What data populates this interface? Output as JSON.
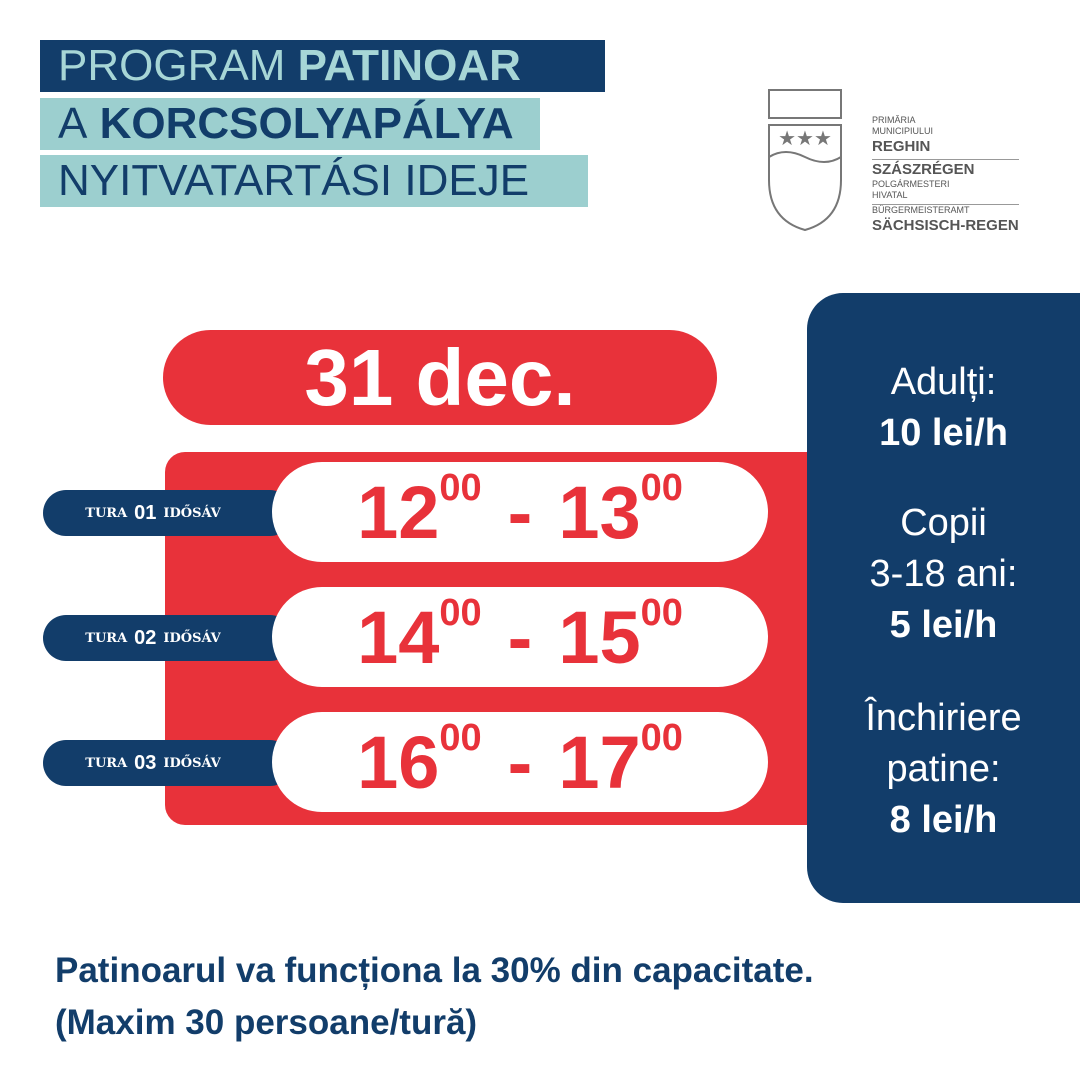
{
  "header": {
    "lines": [
      {
        "normal": "PROGRAM",
        "bold": "PATINOAR"
      },
      {
        "normal": "A",
        "bold": "KORCSOLYAPÁLYA"
      },
      {
        "normal": "NYITVATARTÁSI IDEJE"
      }
    ]
  },
  "logo": {
    "lines": [
      "PRIMĂRIA",
      "MUNICIPIULUI",
      "REGHIN",
      "SZÁSZRÉGEN",
      "POLGÁRMESTERI",
      "HIVATAL",
      "BÜRGERMEISTERAMT",
      "SÄCHSISCH-REGEN"
    ]
  },
  "date": "31 dec.",
  "slots": [
    {
      "label": "TURA",
      "number": "01",
      "suffix": "IDŐSÁV",
      "start_hour": "12",
      "start_min": "00",
      "separator": "-",
      "end_hour": "13",
      "end_min": "00"
    },
    {
      "label": "TURA",
      "number": "02",
      "suffix": "IDŐSÁV",
      "start_hour": "14",
      "start_min": "00",
      "separator": "-",
      "end_hour": "15",
      "end_min": "00"
    },
    {
      "label": "TURA",
      "number": "03",
      "suffix": "IDŐSÁV",
      "start_hour": "16",
      "start_min": "00",
      "separator": "-",
      "end_hour": "17",
      "end_min": "00"
    }
  ],
  "prices": [
    {
      "lines": [
        "Adulți:"
      ],
      "price": "10 lei/h"
    },
    {
      "lines": [
        "Copii",
        "3-18 ani:"
      ],
      "price": "5 lei/h"
    },
    {
      "lines": [
        "Închiriere",
        "patine:"
      ],
      "price": "8 lei/h"
    }
  ],
  "footer": {
    "lines": [
      "Patinoarul va funcționa la 30% din capacitate.",
      "(Maxim 30 persoane/tură)"
    ]
  }
}
